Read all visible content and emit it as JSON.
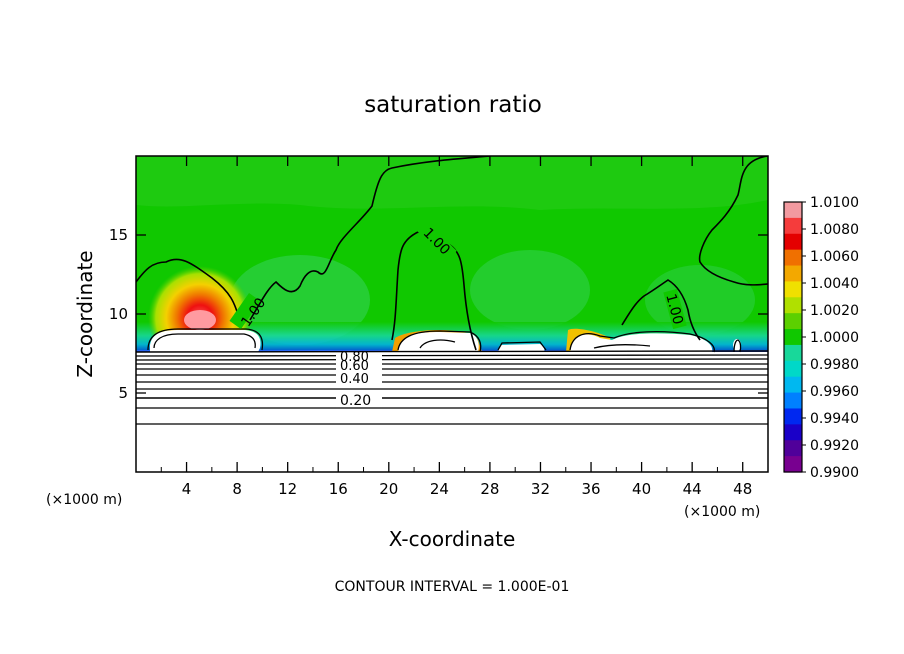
{
  "chart_data": {
    "type": "heatmap",
    "title": "saturation ratio",
    "xlabel": "X-coordinate",
    "ylabel": "Z-coordinate",
    "x_unit": "(×1000 m)",
    "x_unit_right": "(×1000 m)",
    "footer": "CONTOUR INTERVAL = 1.000E-01",
    "xlim": [
      0,
      50
    ],
    "ylim": [
      0,
      20
    ],
    "x_ticks": [
      4,
      8,
      12,
      16,
      20,
      24,
      28,
      32,
      36,
      40,
      44,
      48
    ],
    "y_ticks": [
      5,
      10,
      15
    ],
    "colorbar": {
      "ticks": [
        "1.0100",
        "1.0080",
        "1.0060",
        "1.0040",
        "1.0020",
        "1.0000",
        "0.9980",
        "0.9960",
        "0.9940",
        "0.9920",
        "0.9900"
      ],
      "colors": [
        "#f29aa0",
        "#f53c3c",
        "#e40000",
        "#f07000",
        "#f3a800",
        "#f0e000",
        "#b0e000",
        "#5cd000",
        "#10c800",
        "#18d89a",
        "#00d8c8",
        "#00b8f0",
        "#0080ff",
        "#0028f0",
        "#1a00c8",
        "#50009a",
        "#780090"
      ]
    },
    "contour_labels": [
      {
        "text": "1.00"
      },
      {
        "text": "1.00"
      },
      {
        "text": "1.00"
      },
      {
        "text": "0.80"
      },
      {
        "text": "0.60"
      },
      {
        "text": "0.40"
      },
      {
        "text": "0.20"
      }
    ]
  }
}
